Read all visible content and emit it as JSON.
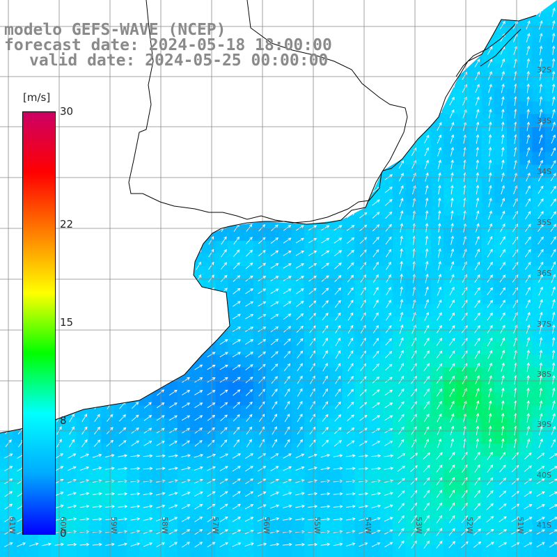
{
  "title": {
    "line1": "modelo GEFS-WAVE (NCEP)",
    "line2": "forecast date: 2024-05-18 18:00:00",
    "line3": "valid date: 2024-05-25 00:00:00"
  },
  "colorbar": {
    "unit": "[m/s]",
    "min": 0,
    "max": 30,
    "ticks": [
      "30",
      "22",
      "15",
      "8",
      "0"
    ],
    "tick_values": [
      30,
      22,
      15,
      8,
      0
    ],
    "colors": [
      "#0000ff",
      "#00aaff",
      "#00ffff",
      "#00ff00",
      "#ffff00",
      "#ff7f00",
      "#ff0000",
      "#cc0066"
    ]
  },
  "latitude_labels": [
    "32S",
    "33S",
    "34S",
    "35S",
    "36S",
    "37S",
    "38S",
    "39S",
    "40S",
    "41S"
  ],
  "longitude_labels": [
    "61W",
    "60W",
    "59W",
    "58W",
    "57W",
    "56W",
    "55W",
    "54W",
    "53W",
    "52W",
    "51W"
  ],
  "map": {
    "field": "10 m wind speed",
    "land_color": "#ffffff",
    "grid_color": "#888888",
    "coast_color": "#000000",
    "arrow_color": "#ffffff",
    "dominant_wind_direction": "from south-west towards north-east"
  }
}
